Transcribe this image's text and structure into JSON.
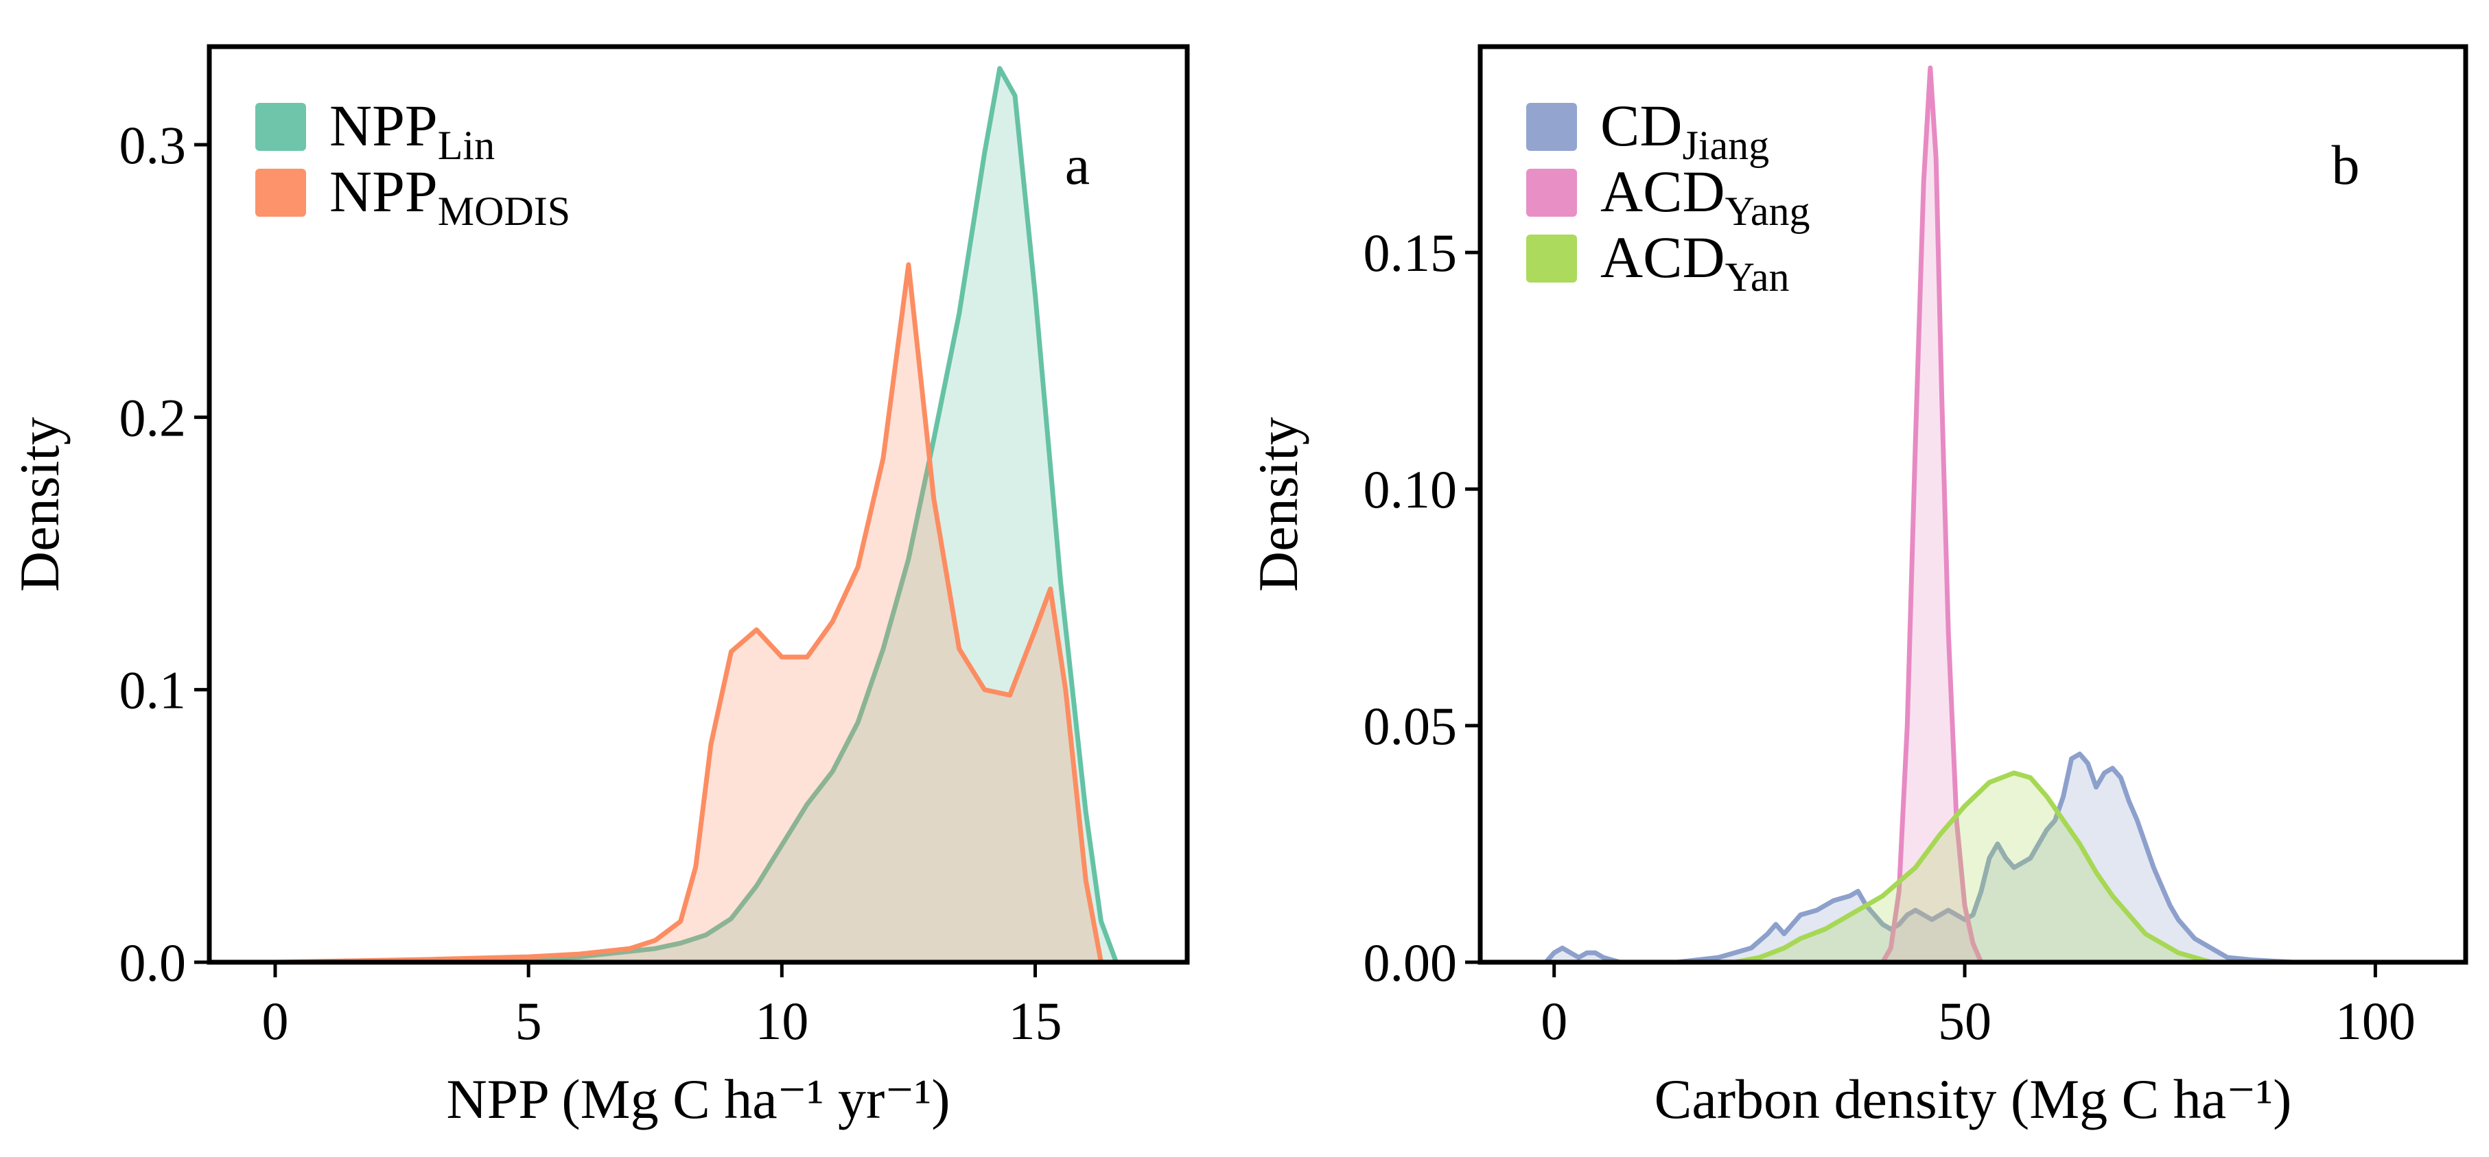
{
  "chart_data": [
    {
      "type": "area",
      "panel_label": "a",
      "ylabel": "Density",
      "xlabel": "NPP (Mg C ha⁻¹ yr⁻¹)",
      "xlim": [
        -1.3,
        18
      ],
      "ylim": [
        0,
        0.336
      ],
      "xticks": [
        0,
        5,
        10,
        15
      ],
      "xtick_labels": [
        "0",
        "5",
        "10",
        "15"
      ],
      "yticks": [
        0,
        0.1,
        0.2,
        0.3
      ],
      "ytick_labels": [
        "0.0",
        "0.1",
        "0.2",
        "0.3"
      ],
      "legend_position": "top-left",
      "series": [
        {
          "name": "NPP_Lin",
          "legend_base": "NPP",
          "legend_sub": "Lin",
          "color": "#66c2a5",
          "x": [
            0,
            3,
            5,
            6,
            7,
            7.5,
            8,
            8.5,
            9,
            9.5,
            10,
            10.5,
            11,
            11.5,
            12,
            12.5,
            13,
            13.5,
            14,
            14.3,
            14.6,
            15,
            15.5,
            16,
            16.3,
            16.6
          ],
          "y": [
            0,
            0,
            0.001,
            0.002,
            0.004,
            0.005,
            0.007,
            0.01,
            0.016,
            0.028,
            0.043,
            0.058,
            0.07,
            0.088,
            0.115,
            0.148,
            0.192,
            0.238,
            0.297,
            0.328,
            0.318,
            0.245,
            0.14,
            0.055,
            0.015,
            0
          ]
        },
        {
          "name": "NPP_MODIS",
          "legend_base": "NPP",
          "legend_sub": "MODIS",
          "color": "#fc8d62",
          "x": [
            0,
            3,
            5,
            6,
            7,
            7.5,
            8,
            8.3,
            8.6,
            9,
            9.5,
            10,
            10.5,
            11,
            11.5,
            12,
            12.5,
            13,
            13.5,
            14,
            14.5,
            15,
            15.3,
            15.6,
            16,
            16.3
          ],
          "y": [
            0,
            0.001,
            0.002,
            0.003,
            0.005,
            0.008,
            0.015,
            0.035,
            0.08,
            0.114,
            0.122,
            0.112,
            0.112,
            0.125,
            0.145,
            0.185,
            0.256,
            0.17,
            0.115,
            0.1,
            0.098,
            0.122,
            0.137,
            0.1,
            0.03,
            0
          ]
        }
      ]
    },
    {
      "type": "area",
      "panel_label": "b",
      "ylabel": "Density",
      "xlabel": "Carbon density (Mg C ha⁻¹)",
      "xlim": [
        -9,
        111
      ],
      "ylim": [
        0,
        0.1935
      ],
      "xticks": [
        0,
        50,
        100
      ],
      "xtick_labels": [
        "0",
        "50",
        "100"
      ],
      "yticks": [
        0,
        0.05,
        0.1,
        0.15
      ],
      "ytick_labels": [
        "0.00",
        "0.05",
        "0.10",
        "0.15"
      ],
      "legend_position": "top-left",
      "series": [
        {
          "name": "CD_Jiang",
          "legend_base": "CD",
          "legend_sub": "Jiang",
          "color": "#8da0cb",
          "x": [
            -1,
            0,
            1,
            2,
            3,
            4,
            5,
            6,
            8,
            15,
            20,
            22,
            24,
            26,
            27,
            28,
            30,
            32,
            34,
            36,
            37,
            38,
            39,
            40,
            41,
            42,
            43,
            44,
            45,
            46,
            47,
            48,
            49,
            50,
            51,
            52,
            53,
            54,
            55,
            56,
            57,
            58,
            59,
            60,
            61,
            62,
            63,
            64,
            65,
            66,
            67,
            68,
            69,
            70,
            71,
            72,
            73,
            74,
            75,
            76,
            78,
            80,
            82,
            85,
            90
          ],
          "y": [
            0,
            0.002,
            0.003,
            0.002,
            0.001,
            0.002,
            0.002,
            0.001,
            0,
            0,
            0.001,
            0.002,
            0.003,
            0.006,
            0.008,
            0.006,
            0.01,
            0.011,
            0.013,
            0.014,
            0.015,
            0.012,
            0.01,
            0.008,
            0.007,
            0.008,
            0.01,
            0.011,
            0.01,
            0.009,
            0.01,
            0.011,
            0.01,
            0.009,
            0.01,
            0.015,
            0.022,
            0.025,
            0.022,
            0.02,
            0.021,
            0.022,
            0.025,
            0.028,
            0.03,
            0.035,
            0.043,
            0.044,
            0.042,
            0.037,
            0.04,
            0.041,
            0.039,
            0.034,
            0.03,
            0.025,
            0.02,
            0.016,
            0.012,
            0.009,
            0.005,
            0.003,
            0.001,
            0.0005,
            0
          ]
        },
        {
          "name": "ACD_Yang",
          "legend_base": "ACD",
          "legend_sub": "Yang",
          "color": "#e78ac3",
          "x": [
            40,
            41,
            42,
            43,
            44,
            45,
            45.8,
            46.5,
            47.2,
            48,
            49,
            50,
            51,
            52
          ],
          "y": [
            0,
            0.003,
            0.015,
            0.05,
            0.11,
            0.165,
            0.189,
            0.17,
            0.12,
            0.07,
            0.03,
            0.012,
            0.004,
            0
          ]
        },
        {
          "name": "ACD_Yan",
          "legend_base": "ACD",
          "legend_sub": "Yan",
          "color": "#a6d854",
          "x": [
            22,
            25,
            28,
            30,
            33,
            36,
            40,
            44,
            47,
            50,
            53,
            56,
            58,
            60,
            62,
            64,
            66,
            68,
            70,
            72,
            74,
            76,
            78,
            80
          ],
          "y": [
            0,
            0.001,
            0.003,
            0.005,
            0.007,
            0.01,
            0.014,
            0.02,
            0.027,
            0.033,
            0.038,
            0.04,
            0.039,
            0.035,
            0.03,
            0.025,
            0.019,
            0.014,
            0.01,
            0.006,
            0.004,
            0.002,
            0.001,
            0
          ]
        }
      ]
    }
  ]
}
